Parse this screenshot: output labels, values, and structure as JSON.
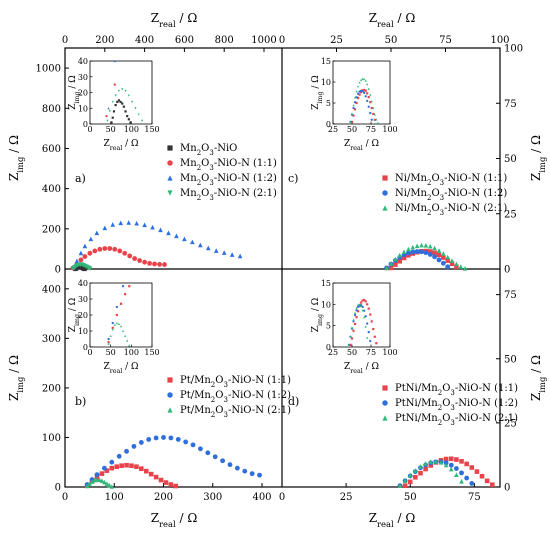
{
  "figure": {
    "axis_labels": {
      "x_main": "real",
      "y_main": "img",
      "unit": "/ Ω",
      "symbol": "Z"
    }
  },
  "chart_data": [
    {
      "panel": "a)",
      "type": "scatter",
      "xlabel": "Z_real / Ω",
      "ylabel": "Z_img / Ω",
      "xlim": [
        0,
        1000
      ],
      "ylim": [
        0,
        1100
      ],
      "xticks": [
        0,
        200,
        400,
        600,
        800,
        1000
      ],
      "yticks": [
        0,
        200,
        400,
        600,
        800,
        1000
      ],
      "legend_position": "center-right",
      "series": [
        {
          "name": "Mn2O3-NiO",
          "name_display": [
            "Mn",
            "2",
            "O",
            "3",
            "-NiO"
          ],
          "marker": "square",
          "color": "#333333",
          "x": [
            52,
            55,
            58,
            62,
            66,
            70,
            74,
            78,
            82,
            86,
            90,
            94,
            98
          ],
          "y": [
            1,
            4,
            8,
            12,
            14,
            15,
            14,
            13,
            11,
            8,
            5,
            3,
            1
          ]
        },
        {
          "name": "Mn2O3-NiO-N (1:1)",
          "name_display": [
            "Mn",
            "2",
            "O",
            "3",
            "-NiO-N (1:1)"
          ],
          "marker": "circle",
          "color": "#e8434a",
          "x": [
            40,
            60,
            80,
            100,
            125,
            150,
            175,
            200,
            225,
            250,
            275,
            300,
            325,
            350,
            375,
            400,
            425,
            450,
            475,
            500
          ],
          "y": [
            5,
            25,
            45,
            62,
            78,
            90,
            98,
            102,
            102,
            98,
            90,
            78,
            65,
            52,
            42,
            34,
            28,
            25,
            23,
            22
          ]
        },
        {
          "name": "Mn2O3-NiO-N (1:2)",
          "name_display": [
            "Mn",
            "2",
            "O",
            "3",
            "-NiO-N (1:2)"
          ],
          "marker": "triangle",
          "color": "#2f6fdc",
          "x": [
            45,
            60,
            80,
            100,
            130,
            160,
            200,
            240,
            280,
            320,
            360,
            400,
            440,
            480,
            520,
            560,
            600,
            640,
            680,
            720,
            760,
            800,
            840,
            880
          ],
          "y": [
            10,
            40,
            80,
            115,
            150,
            180,
            205,
            222,
            230,
            232,
            228,
            220,
            208,
            195,
            180,
            165,
            150,
            135,
            120,
            105,
            92,
            82,
            72,
            65
          ]
        },
        {
          "name": "Mn2O3-NiO-N (2:1)",
          "name_display": [
            "Mn",
            "2",
            "O",
            "3",
            "-NiO-N (2:1)"
          ],
          "marker": "triangle-down",
          "color": "#2fb87a",
          "x": [
            42,
            48,
            55,
            62,
            70,
            78,
            86,
            94,
            102,
            110,
            118,
            126
          ],
          "y": [
            2,
            8,
            14,
            18,
            21,
            22,
            21,
            18,
            14,
            10,
            6,
            2
          ]
        }
      ],
      "inset": {
        "xlim": [
          0,
          150
        ],
        "ylim": [
          0,
          40
        ],
        "xticks": [
          0,
          50,
          100,
          150
        ],
        "yticks": [
          0,
          10,
          20,
          30,
          40
        ]
      }
    },
    {
      "panel": "c)",
      "type": "scatter",
      "xlabel": "Z_real / Ω",
      "ylabel": "Z_img / Ω",
      "xlim": [
        0,
        100
      ],
      "ylim": [
        0,
        100
      ],
      "xticks": [
        0,
        25,
        50,
        75,
        100
      ],
      "yticks": [
        0,
        25,
        50,
        75,
        100
      ],
      "legend_position": "center-right",
      "series": [
        {
          "name": "Ni/Mn2O3-NiO-N (1:1)",
          "name_display": [
            "Ni/Mn",
            "2",
            "O",
            "3",
            "-NiO-N (1:1)"
          ],
          "marker": "square",
          "color": "#e8434a",
          "x": [
            50,
            52,
            54,
            56,
            58,
            60,
            62,
            64,
            66,
            68,
            70,
            72,
            74,
            76,
            78,
            80
          ],
          "y": [
            0.5,
            2,
            3.5,
            5,
            6.2,
            7,
            7.6,
            8,
            8.1,
            7.9,
            7.3,
            6.4,
            5.2,
            3.8,
            2.4,
            1
          ]
        },
        {
          "name": "Ni/Mn2O3-NiO-N (1:2)",
          "name_display": [
            "Ni/Mn",
            "2",
            "O",
            "3",
            "-NiO-N (1:2)"
          ],
          "marker": "circle",
          "color": "#2f6fdc",
          "x": [
            48,
            50,
            52,
            54,
            56,
            58,
            60,
            62,
            64,
            66,
            68,
            70,
            72,
            74,
            76
          ],
          "y": [
            0.5,
            2.2,
            3.8,
            5.2,
            6.4,
            7.2,
            7.7,
            7.9,
            7.8,
            7.4,
            6.6,
            5.5,
            4.1,
            2.6,
            1
          ]
        },
        {
          "name": "Ni/Mn2O3-NiO-N (2:1)",
          "name_display": [
            "Ni/Mn",
            "2",
            "O",
            "3",
            "-NiO-N (2:1)"
          ],
          "marker": "triangle",
          "color": "#2fb87a",
          "x": [
            48,
            50,
            52,
            54,
            56,
            58,
            60,
            62,
            64,
            66,
            68,
            70,
            72,
            74,
            76,
            78,
            80,
            82,
            84
          ],
          "y": [
            0.5,
            2.5,
            4.5,
            6.3,
            7.8,
            9,
            9.9,
            10.5,
            10.8,
            10.7,
            10.3,
            9.5,
            8.4,
            7,
            5.4,
            3.8,
            2.3,
            1.1,
            0.3
          ]
        }
      ],
      "inset": {
        "xlim": [
          25,
          100
        ],
        "ylim": [
          0,
          15
        ],
        "xticks": [
          25,
          50,
          75,
          100
        ],
        "yticks": [
          0,
          5,
          10,
          15
        ]
      }
    },
    {
      "panel": "b)",
      "type": "scatter",
      "xlabel": "Z_real / Ω",
      "ylabel": "Z_img / Ω",
      "xlim": [
        0,
        400
      ],
      "ylim": [
        0,
        440
      ],
      "xticks": [
        0,
        100,
        200,
        300,
        400
      ],
      "yticks": [
        0,
        100,
        200,
        300,
        400
      ],
      "legend_position": "center-right",
      "series": [
        {
          "name": "Pt/Mn2O3-NiO-N (1:1)",
          "name_display": [
            "Pt/Mn",
            "2",
            "O",
            "3",
            "-NiO-N (1:1)"
          ],
          "marker": "square",
          "color": "#e8434a",
          "x": [
            45,
            55,
            65,
            75,
            85,
            95,
            105,
            115,
            125,
            135,
            145,
            155,
            165,
            175,
            185,
            195,
            205,
            215,
            225
          ],
          "y": [
            3,
            12,
            20,
            27,
            33,
            38,
            41,
            43,
            44,
            43,
            41,
            37,
            32,
            26,
            20,
            14,
            9,
            5,
            2
          ]
        },
        {
          "name": "Pt/Mn2O3-NiO-N (1:2)",
          "name_display": [
            "Pt/Mn",
            "2",
            "O",
            "3",
            "-NiO-N (1:2)"
          ],
          "marker": "circle",
          "color": "#2f6fdc",
          "x": [
            45,
            55,
            65,
            80,
            95,
            110,
            125,
            140,
            155,
            170,
            185,
            200,
            215,
            230,
            245,
            260,
            275,
            290,
            305,
            320,
            335,
            350,
            365,
            380,
            395
          ],
          "y": [
            5,
            15,
            25,
            38,
            50,
            62,
            72,
            82,
            90,
            96,
            99,
            100,
            99,
            96,
            91,
            85,
            77,
            69,
            61,
            53,
            45,
            38,
            32,
            27,
            24
          ]
        },
        {
          "name": "Pt/Mn2O3-NiO-N (2:1)",
          "name_display": [
            "Pt/Mn",
            "2",
            "O",
            "3",
            "-NiO-N (2:1)"
          ],
          "marker": "triangle",
          "color": "#2fb87a",
          "x": [
            45,
            50,
            55,
            60,
            65,
            70,
            75,
            80,
            85,
            90,
            95
          ],
          "y": [
            2,
            7,
            11,
            14,
            15,
            14.5,
            13,
            10,
            7,
            4,
            1
          ]
        }
      ],
      "inset": {
        "xlim": [
          0,
          150
        ],
        "ylim": [
          0,
          40
        ],
        "xticks": [
          0,
          50,
          100,
          150
        ],
        "yticks": [
          0,
          10,
          20,
          30,
          40
        ]
      }
    },
    {
      "panel": "d)",
      "type": "scatter",
      "xlabel": "Z_real / Ω",
      "ylabel": "Z_img / Ω",
      "xlim": [
        0,
        85
      ],
      "ylim": [
        0,
        85
      ],
      "xticks": [
        0,
        25,
        50,
        75
      ],
      "yticks": [
        0,
        25,
        50,
        75
      ],
      "legend_position": "center-right",
      "series": [
        {
          "name": "PtNi/Mn2O3-NiO-N (1:1)",
          "name_display": [
            "PtNi/Mn",
            "2",
            "O",
            "3",
            "-NiO-N (1:1)"
          ],
          "marker": "square",
          "color": "#e8434a",
          "x": [
            48,
            50,
            52,
            54,
            56,
            58,
            60,
            62,
            64,
            66,
            68,
            70,
            72,
            74,
            76,
            78,
            80,
            82
          ],
          "y": [
            0.5,
            2,
            3.8,
            5.4,
            7,
            8.4,
            9.6,
            10.4,
            10.9,
            11,
            10.7,
            10,
            9,
            7.6,
            6,
            4.2,
            2.4,
            0.9
          ]
        },
        {
          "name": "PtNi/Mn2O3-NiO-N (1:2)",
          "name_display": [
            "PtNi/Mn",
            "2",
            "O",
            "3",
            "-NiO-N (1:2)"
          ],
          "marker": "circle",
          "color": "#2f6fdc",
          "x": [
            46,
            48,
            50,
            52,
            54,
            56,
            58,
            60,
            62,
            64,
            66,
            68,
            70,
            72,
            74
          ],
          "y": [
            0.5,
            2.4,
            4.3,
            6,
            7.5,
            8.6,
            9.4,
            9.8,
            9.8,
            9.4,
            8.5,
            7.2,
            5.5,
            3.5,
            1.4
          ]
        },
        {
          "name": "PtNi/Mn2O3-NiO-N (2:1)",
          "name_display": [
            "PtNi/Mn",
            "2",
            "O",
            "3",
            "-NiO-N (2:1)"
          ],
          "marker": "triangle",
          "color": "#2fb87a",
          "x": [
            46,
            48,
            50,
            52,
            54,
            56,
            58,
            60,
            62,
            64,
            66,
            68,
            70
          ],
          "y": [
            0.5,
            2.5,
            4.6,
            6.4,
            8,
            9.2,
            9.9,
            10,
            9.6,
            8.6,
            7,
            4.8,
            2.2
          ]
        }
      ],
      "inset": {
        "xlim": [
          25,
          100
        ],
        "ylim": [
          0,
          15
        ],
        "xticks": [
          25,
          50,
          75,
          100
        ],
        "yticks": [
          0,
          5,
          10,
          15
        ]
      }
    }
  ]
}
